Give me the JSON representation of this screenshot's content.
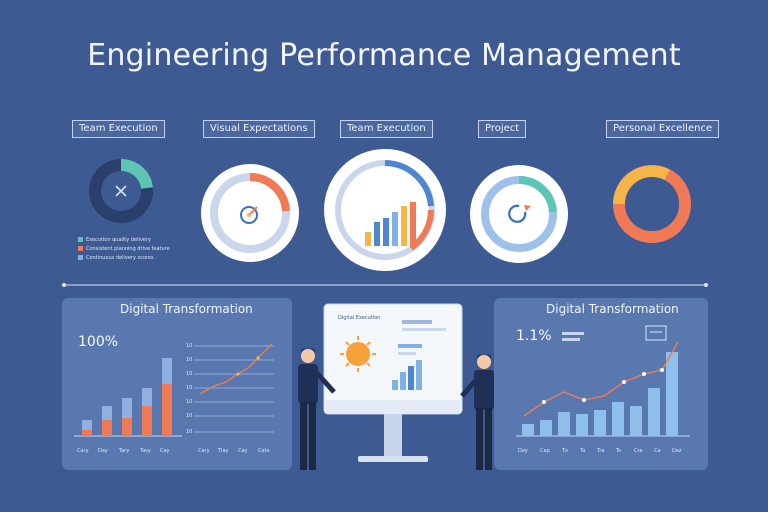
{
  "title": "Engineering Performance Management",
  "kpis": [
    {
      "label": "Team Execution"
    },
    {
      "label": "Visual Expectations"
    },
    {
      "label": "Team Execution"
    },
    {
      "label": "Project"
    },
    {
      "label": "Personal Excellence"
    }
  ],
  "legend": [
    {
      "text": "Execution quality delivery",
      "color": "#5ec4b6"
    },
    {
      "text": "Consistent planning drive feature",
      "color": "#f07a55"
    },
    {
      "text": "Continuous delivery scores",
      "color": "#7fb0e6"
    }
  ],
  "presenter_board": {
    "heading": "Digital Execution"
  },
  "left_panel": {
    "title": "Digital Transformation",
    "value": "100%",
    "bar_labels": [
      "Cary",
      "Day",
      "Tary",
      "Tasy",
      "Cay"
    ],
    "line_labels": [
      "Cary",
      "Tlay",
      "Cay",
      "Cate"
    ],
    "y_ticks": [
      "10",
      "10",
      "10",
      "10",
      "10",
      "10",
      "10"
    ]
  },
  "right_panel": {
    "title": "Digital Transformation",
    "value": "1.1%",
    "x_labels": [
      "Day",
      "Cap",
      "Tx",
      "Ta",
      "Tra",
      "Ts",
      "Cra",
      "Ca",
      "Daz"
    ]
  },
  "colors": {
    "background": "#3d5a92",
    "panel": "#5a78b0",
    "accent_orange": "#f07a55",
    "accent_blue": "#7fb0e6",
    "accent_teal": "#5ec4b6",
    "accent_yellow": "#f5b54a"
  }
}
